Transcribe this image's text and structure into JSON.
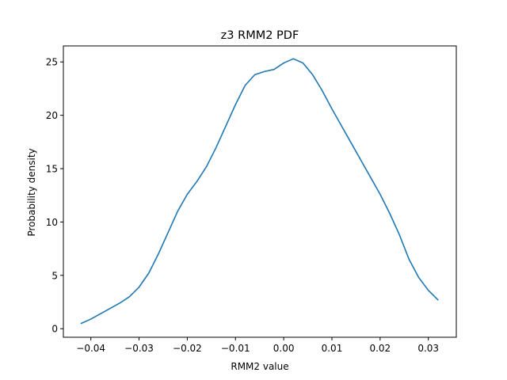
{
  "chart_data": {
    "type": "line",
    "title": "z3 RMM2 PDF",
    "xlabel": "RMM2 value",
    "ylabel": "Probability density",
    "xlim": [
      -0.0457,
      0.0358
    ],
    "ylim": [
      -0.8,
      26.5
    ],
    "xticks": [
      -0.04,
      -0.03,
      -0.02,
      -0.01,
      0.0,
      0.01,
      0.02,
      0.03
    ],
    "xtick_labels": [
      "−0.04",
      "−0.03",
      "−0.02",
      "−0.01",
      "0.00",
      "0.01",
      "0.02",
      "0.03"
    ],
    "yticks": [
      0,
      5,
      10,
      15,
      20,
      25
    ],
    "ytick_labels": [
      "0",
      "5",
      "10",
      "15",
      "20",
      "25"
    ],
    "grid": false,
    "legend": "none",
    "series": [
      {
        "color": "#1f77b4",
        "x": [
          -0.042,
          -0.04,
          -0.038,
          -0.036,
          -0.034,
          -0.032,
          -0.03,
          -0.028,
          -0.026,
          -0.024,
          -0.022,
          -0.02,
          -0.018,
          -0.016,
          -0.014,
          -0.012,
          -0.01,
          -0.008,
          -0.006,
          -0.004,
          -0.002,
          0.0,
          0.002,
          0.004,
          0.006,
          0.008,
          0.01,
          0.012,
          0.014,
          0.016,
          0.018,
          0.02,
          0.022,
          0.024,
          0.026,
          0.028,
          0.03,
          0.032
        ],
        "y": [
          0.5,
          0.9,
          1.4,
          1.9,
          2.4,
          3.0,
          3.9,
          5.2,
          7.0,
          9.0,
          11.0,
          12.6,
          13.8,
          15.2,
          17.0,
          19.0,
          21.0,
          22.8,
          23.8,
          24.1,
          24.3,
          24.9,
          25.3,
          24.9,
          23.8,
          22.3,
          20.6,
          19.0,
          17.4,
          15.8,
          14.2,
          12.6,
          10.8,
          8.8,
          6.5,
          4.8,
          3.6,
          2.7
        ]
      }
    ]
  }
}
